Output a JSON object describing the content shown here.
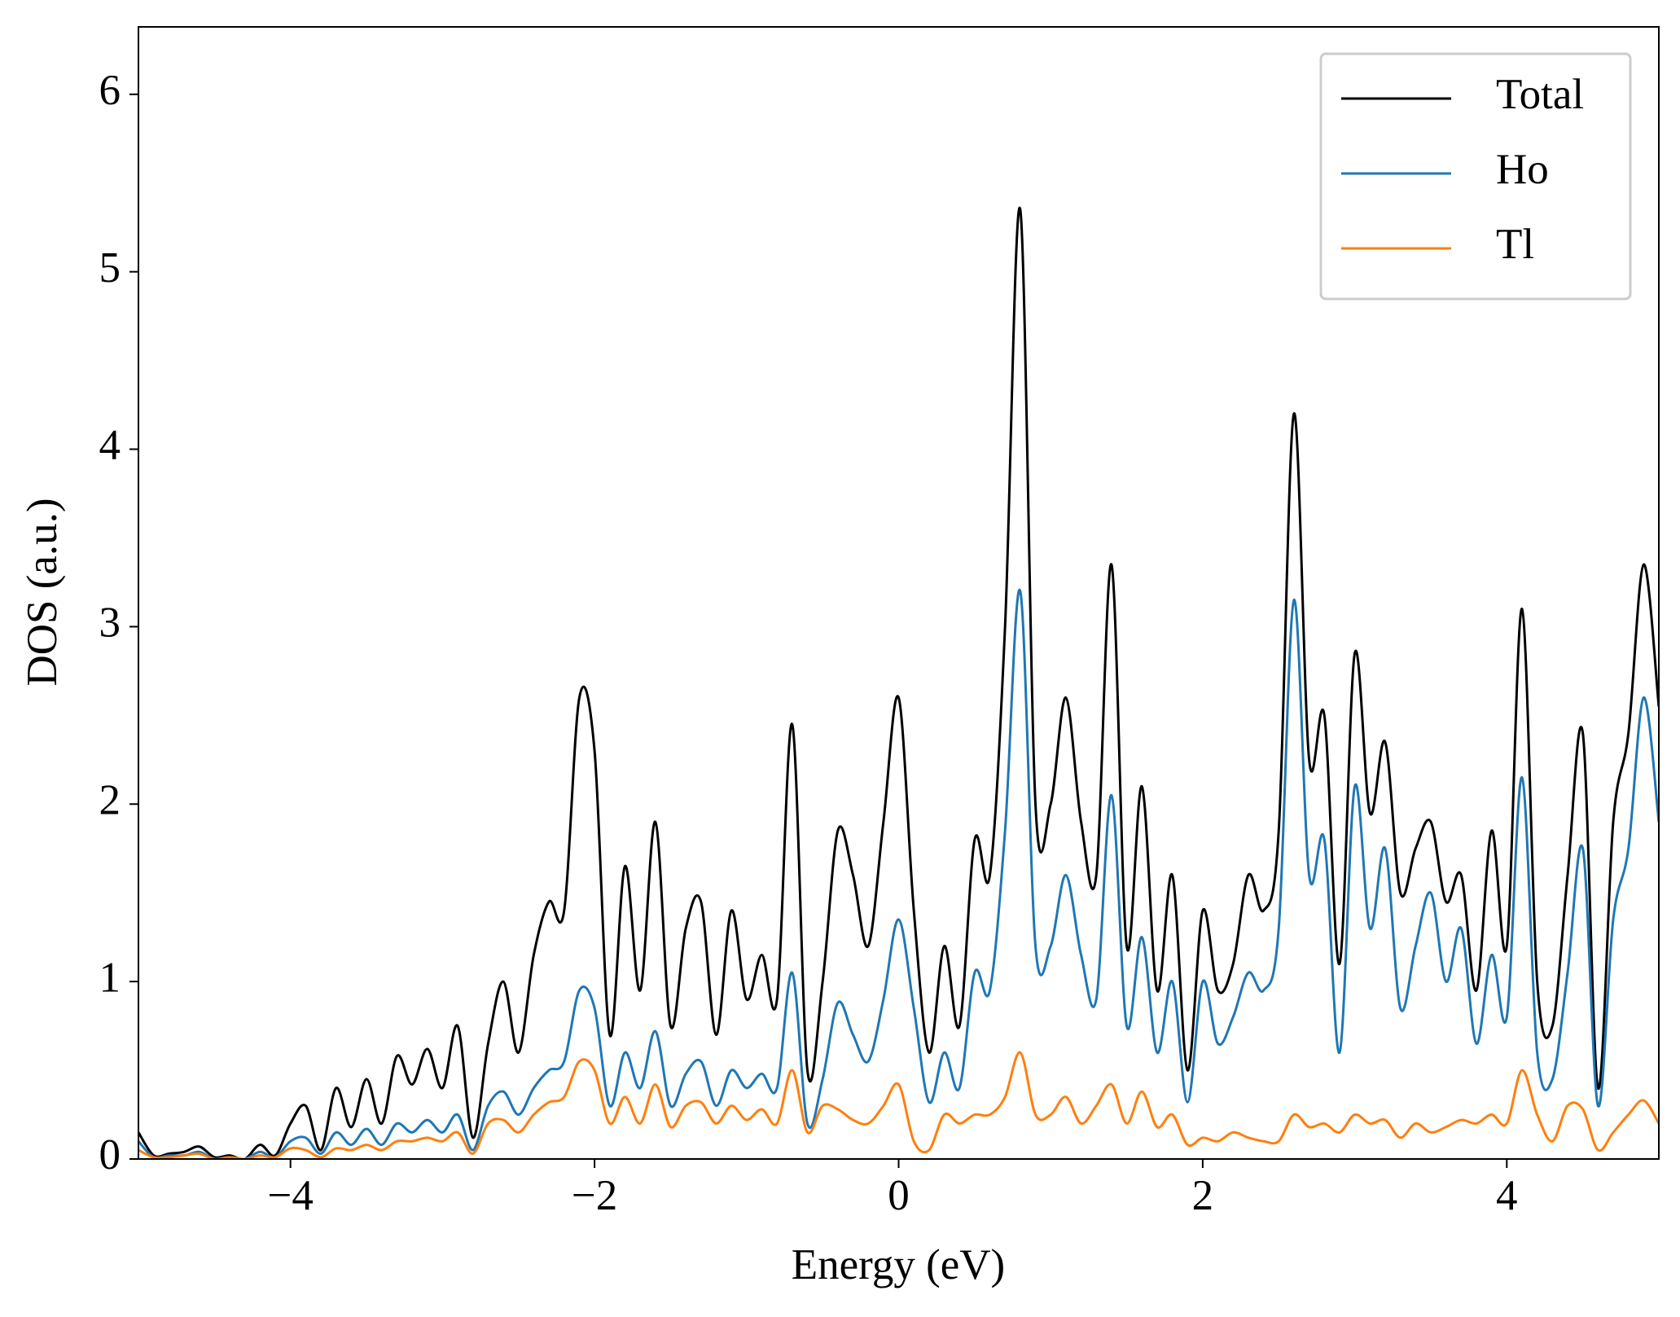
{
  "chart_data": {
    "type": "line",
    "xlabel": "Energy (eV)",
    "ylabel": "DOS (a.u.)",
    "x": [
      -5.0,
      -4.9,
      -4.8,
      -4.7,
      -4.6,
      -4.5,
      -4.4,
      -4.3,
      -4.2,
      -4.1,
      -4.0,
      -3.9,
      -3.8,
      -3.7,
      -3.6,
      -3.5,
      -3.4,
      -3.3,
      -3.2,
      -3.1,
      -3.0,
      -2.9,
      -2.8,
      -2.7,
      -2.6,
      -2.5,
      -2.4,
      -2.3,
      -2.2,
      -2.1,
      -2.0,
      -1.9,
      -1.8,
      -1.7,
      -1.6,
      -1.5,
      -1.4,
      -1.3,
      -1.2,
      -1.1,
      -1.0,
      -0.9,
      -0.8,
      -0.7,
      -0.6,
      -0.5,
      -0.4,
      -0.3,
      -0.2,
      -0.1,
      0.0,
      0.1,
      0.2,
      0.3,
      0.4,
      0.5,
      0.6,
      0.7,
      0.8,
      0.9,
      1.0,
      1.1,
      1.2,
      1.3,
      1.4,
      1.5,
      1.6,
      1.7,
      1.8,
      1.9,
      2.0,
      2.1,
      2.2,
      2.3,
      2.4,
      2.5,
      2.6,
      2.7,
      2.8,
      2.9,
      3.0,
      3.1,
      3.2,
      3.3,
      3.4,
      3.5,
      3.6,
      3.7,
      3.8,
      3.9,
      4.0,
      4.1,
      4.2,
      4.3,
      4.4,
      4.5,
      4.6,
      4.7,
      4.8,
      4.9,
      5.0
    ],
    "series": [
      {
        "name": "Total",
        "color": "#000000",
        "values": [
          0.15,
          0.02,
          0.03,
          0.04,
          0.07,
          0.01,
          0.02,
          0.0,
          0.08,
          0.02,
          0.2,
          0.3,
          0.05,
          0.4,
          0.18,
          0.45,
          0.2,
          0.58,
          0.42,
          0.62,
          0.4,
          0.75,
          0.12,
          0.65,
          1.0,
          0.6,
          1.15,
          1.45,
          1.4,
          2.6,
          2.3,
          0.7,
          1.65,
          0.95,
          1.9,
          0.75,
          1.3,
          1.45,
          0.7,
          1.4,
          0.9,
          1.15,
          0.9,
          2.45,
          0.5,
          1.0,
          1.85,
          1.6,
          1.2,
          1.9,
          2.6,
          1.4,
          0.6,
          1.2,
          0.75,
          1.8,
          1.6,
          3.0,
          5.35,
          2.0,
          2.0,
          2.6,
          1.9,
          1.6,
          3.35,
          1.2,
          2.1,
          0.95,
          1.6,
          0.5,
          1.4,
          0.95,
          1.1,
          1.6,
          1.4,
          1.85,
          4.2,
          2.25,
          2.5,
          1.1,
          2.85,
          1.95,
          2.35,
          1.5,
          1.75,
          1.9,
          1.45,
          1.6,
          0.95,
          1.85,
          1.2,
          3.1,
          1.0,
          0.75,
          1.6,
          2.4,
          0.4,
          1.9,
          2.4,
          3.35,
          2.55
        ]
      },
      {
        "name": "Ho",
        "color": "#1f77b4",
        "values": [
          0.1,
          0.01,
          0.02,
          0.02,
          0.04,
          0.0,
          0.01,
          0.0,
          0.04,
          0.01,
          0.1,
          0.12,
          0.03,
          0.15,
          0.08,
          0.17,
          0.08,
          0.2,
          0.15,
          0.22,
          0.15,
          0.25,
          0.05,
          0.3,
          0.38,
          0.25,
          0.4,
          0.5,
          0.55,
          0.95,
          0.85,
          0.3,
          0.6,
          0.4,
          0.72,
          0.3,
          0.48,
          0.55,
          0.3,
          0.5,
          0.4,
          0.48,
          0.4,
          1.05,
          0.2,
          0.45,
          0.88,
          0.7,
          0.55,
          0.9,
          1.35,
          0.85,
          0.32,
          0.6,
          0.4,
          1.05,
          0.95,
          1.85,
          3.2,
          1.2,
          1.2,
          1.6,
          1.15,
          0.9,
          2.05,
          0.75,
          1.25,
          0.6,
          1.0,
          0.32,
          1.0,
          0.65,
          0.8,
          1.05,
          0.95,
          1.3,
          3.15,
          1.6,
          1.8,
          0.6,
          2.1,
          1.3,
          1.75,
          0.85,
          1.2,
          1.5,
          1.0,
          1.3,
          0.65,
          1.15,
          0.8,
          2.15,
          0.6,
          0.45,
          1.05,
          1.75,
          0.3,
          1.35,
          1.75,
          2.6,
          1.9
        ]
      },
      {
        "name": "Tl",
        "color": "#ff7f0e",
        "values": [
          0.05,
          0.01,
          0.01,
          0.02,
          0.03,
          0.0,
          0.01,
          0.0,
          0.02,
          0.01,
          0.06,
          0.05,
          0.01,
          0.06,
          0.05,
          0.08,
          0.05,
          0.1,
          0.1,
          0.12,
          0.1,
          0.15,
          0.03,
          0.2,
          0.22,
          0.15,
          0.25,
          0.32,
          0.35,
          0.55,
          0.5,
          0.2,
          0.35,
          0.2,
          0.42,
          0.18,
          0.3,
          0.32,
          0.2,
          0.3,
          0.22,
          0.28,
          0.2,
          0.5,
          0.15,
          0.3,
          0.28,
          0.22,
          0.2,
          0.3,
          0.42,
          0.1,
          0.05,
          0.25,
          0.2,
          0.25,
          0.25,
          0.35,
          0.6,
          0.25,
          0.25,
          0.35,
          0.2,
          0.3,
          0.42,
          0.2,
          0.38,
          0.18,
          0.25,
          0.08,
          0.12,
          0.1,
          0.15,
          0.12,
          0.1,
          0.1,
          0.25,
          0.18,
          0.2,
          0.15,
          0.25,
          0.2,
          0.22,
          0.12,
          0.2,
          0.15,
          0.18,
          0.22,
          0.2,
          0.25,
          0.2,
          0.5,
          0.25,
          0.1,
          0.3,
          0.28,
          0.05,
          0.15,
          0.25,
          0.33,
          0.2
        ]
      }
    ],
    "xlim": [
      -5,
      5
    ],
    "ylim": [
      0,
      6.38
    ],
    "xticks": [
      {
        "value": -4,
        "label": "−4"
      },
      {
        "value": -2,
        "label": "−2"
      },
      0,
      2,
      4
    ],
    "yticks": [
      0,
      1,
      2,
      3,
      4,
      5,
      6
    ],
    "legend": "upper right"
  }
}
